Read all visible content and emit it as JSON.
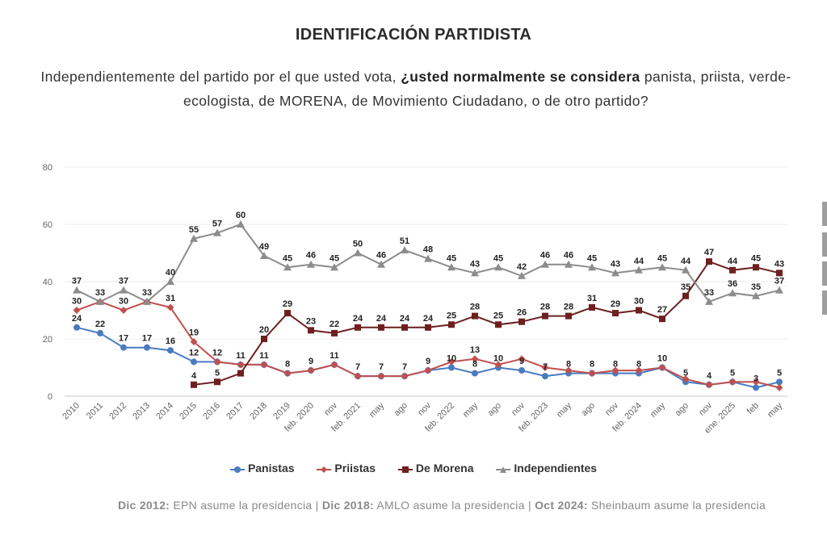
{
  "header": {
    "title": "IDENTIFICACIÓN PARTIDISTA",
    "question_pre": "Independientemente del partido por el que usted vota, ",
    "question_bold": "¿usted normalmente se considera",
    "question_post": " panista, priista, verde-ecologista, de MORENA, de Movimiento Ciudadano, o de otro partido?"
  },
  "chart_data": {
    "type": "line",
    "x": [
      "2010",
      "2011",
      "2012",
      "2013",
      "2014",
      "2015",
      "2016",
      "2017",
      "2018",
      "2019",
      "feb. 2020",
      "nov",
      "feb. 2021",
      "may",
      "ago",
      "nov",
      "feb. 2022",
      "may",
      "ago",
      "nov",
      "feb. 2023",
      "may",
      "ago",
      "nov",
      "feb. 2024",
      "may",
      "ago",
      "nov",
      "ene. 2025",
      "feb",
      "may"
    ],
    "ylim": [
      0,
      80
    ],
    "yticks": [
      0,
      20,
      40,
      60,
      80
    ],
    "grid": true,
    "legend_position": "bottom",
    "series": [
      {
        "name": "Panistas",
        "color": "#4a7bbf",
        "marker": "circle",
        "values": [
          24,
          22,
          17,
          17,
          16,
          12,
          12,
          11,
          11,
          8,
          9,
          11,
          7,
          7,
          7,
          9,
          10,
          8,
          10,
          9,
          7,
          8,
          8,
          8,
          8,
          10,
          5,
          4,
          5,
          3,
          5
        ],
        "labels": [
          24,
          22,
          17,
          17,
          16,
          12,
          12,
          11,
          11,
          8,
          9,
          11,
          7,
          7,
          7,
          9,
          10,
          8,
          10,
          9,
          7,
          8,
          8,
          8,
          8,
          10,
          5,
          4,
          5,
          3,
          5
        ],
        "label_pos": [
          "above",
          "above",
          "above",
          "above",
          "above",
          "above",
          "above",
          "above",
          "above",
          "above",
          "above",
          "above",
          "above",
          "above",
          "above",
          "above",
          "above",
          "above",
          "above",
          "above",
          "above",
          "above",
          "above",
          "above",
          "above",
          "above",
          "above",
          "above",
          "above",
          "above",
          "above"
        ]
      },
      {
        "name": "Priistas",
        "color": "#c0504d",
        "marker": "diamond",
        "values": [
          30,
          33,
          30,
          33,
          31,
          19,
          12,
          11,
          11,
          8,
          9,
          11,
          7,
          7,
          7,
          9,
          12,
          13,
          11,
          13,
          10,
          9,
          8,
          9,
          9,
          10,
          6,
          4,
          5,
          5,
          3
        ],
        "labels": [
          30,
          null,
          30,
          null,
          31,
          19,
          null,
          null,
          null,
          null,
          null,
          null,
          null,
          null,
          null,
          null,
          null,
          13,
          null,
          null,
          null,
          null,
          null,
          null,
          null,
          null,
          null,
          null,
          null,
          null,
          null
        ],
        "label_pos": [
          "above",
          "above",
          "above",
          "above",
          "above",
          "above",
          "above",
          "above",
          "above",
          "above",
          "above",
          "above",
          "above",
          "above",
          "above",
          "above",
          "above",
          "above",
          "above",
          "above",
          "above",
          "above",
          "above",
          "above",
          "above",
          "above",
          "above",
          "above",
          "above",
          "above",
          "above"
        ]
      },
      {
        "name": "De Morena",
        "color": "#6e1f1f",
        "marker": "square",
        "values": [
          null,
          null,
          null,
          null,
          null,
          4,
          5,
          8,
          20,
          29,
          23,
          22,
          24,
          24,
          24,
          24,
          25,
          28,
          25,
          26,
          28,
          28,
          31,
          29,
          30,
          27,
          35,
          47,
          44,
          45,
          43
        ],
        "labels": [
          null,
          null,
          null,
          null,
          null,
          4,
          5,
          null,
          20,
          29,
          23,
          22,
          24,
          24,
          24,
          24,
          25,
          28,
          25,
          26,
          28,
          28,
          31,
          29,
          30,
          27,
          35,
          47,
          44,
          45,
          43
        ],
        "label_pos": [
          "above",
          "above",
          "above",
          "above",
          "above",
          "above",
          "above",
          "above",
          "above",
          "above",
          "above",
          "above",
          "above",
          "above",
          "above",
          "above",
          "above",
          "above",
          "above",
          "above",
          "above",
          "above",
          "above",
          "above",
          "above",
          "above",
          "above",
          "above",
          "above",
          "above",
          "above"
        ]
      },
      {
        "name": "Independientes",
        "color": "#8c8c8c",
        "marker": "triangle",
        "values": [
          37,
          33,
          37,
          33,
          40,
          55,
          57,
          60,
          49,
          45,
          46,
          45,
          50,
          46,
          51,
          48,
          45,
          43,
          45,
          42,
          46,
          46,
          45,
          43,
          44,
          45,
          44,
          33,
          36,
          35,
          37
        ],
        "labels": [
          37,
          33,
          37,
          33,
          40,
          55,
          57,
          60,
          49,
          45,
          46,
          45,
          50,
          46,
          51,
          48,
          45,
          43,
          45,
          42,
          46,
          46,
          45,
          43,
          44,
          45,
          44,
          33,
          36,
          35,
          37
        ],
        "label_pos": [
          "above",
          "above",
          "above",
          "above",
          "above",
          "above",
          "above",
          "above",
          "above",
          "above",
          "above",
          "above",
          "above",
          "above",
          "above",
          "above",
          "above",
          "above",
          "above",
          "above",
          "above",
          "above",
          "above",
          "above",
          "above",
          "above",
          "above",
          "above",
          "above",
          "above",
          "above"
        ]
      }
    ]
  },
  "footnote": {
    "n1_bold": "Dic 2012:",
    "n1_text": " EPN asume la presidencia | ",
    "n2_bold": "Dic 2018:",
    "n2_text": " AMLO asume la presidencia | ",
    "n3_bold": "Oct 2024:",
    "n3_text": " Sheinbaum asume la presidencia"
  }
}
